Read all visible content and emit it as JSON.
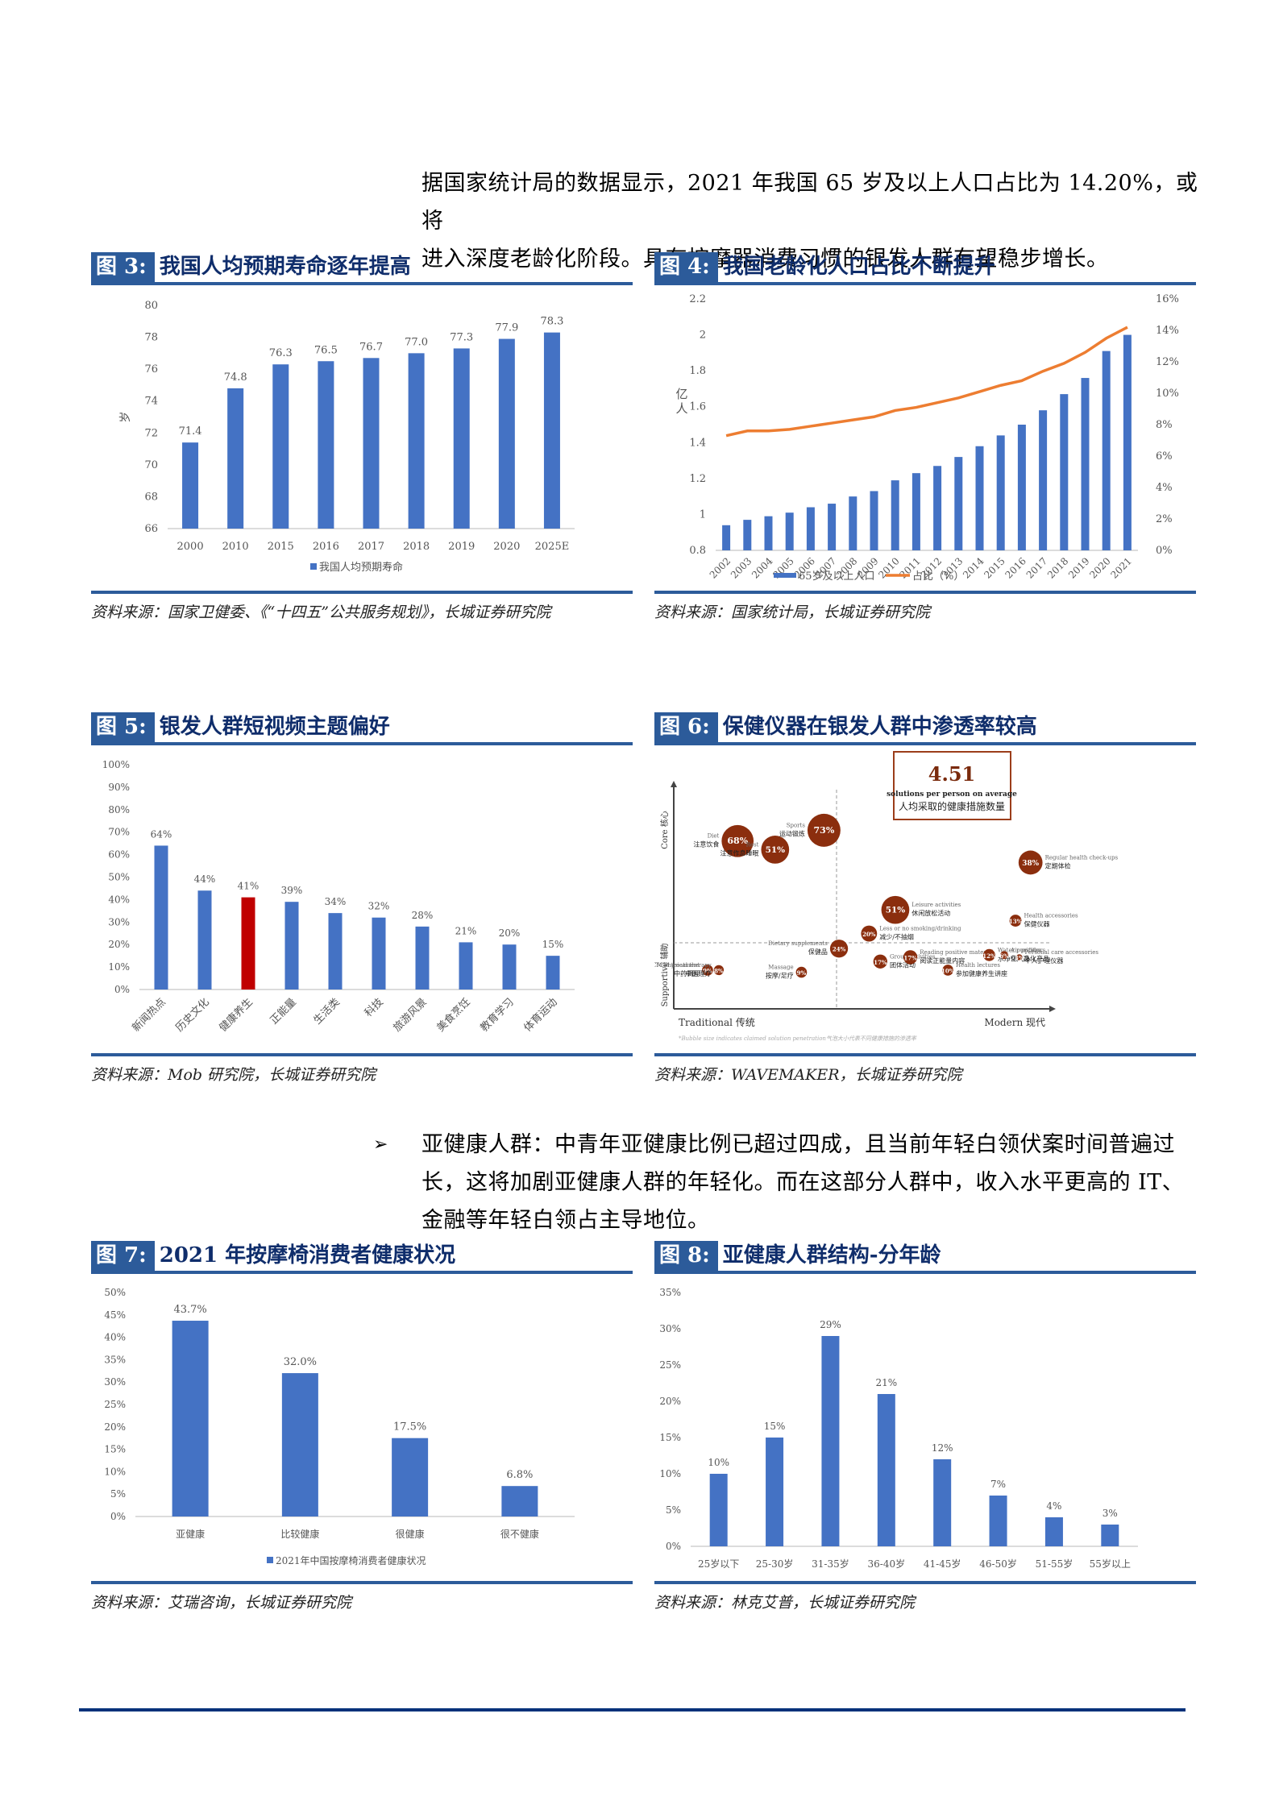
{
  "intro": {
    "line1": "据国家统计局的数据显示，2021 年我国 65 岁及以上人口占比为 14.20%，或将",
    "line2": "进入深度老龄化阶段。具有按摩器消费习惯的银发人群有望稳步增长。"
  },
  "bullet": {
    "marker": "➢",
    "line1": "亚健康人群：中青年亚健康比例已超过四成，且当前年轻白领伏案时间普遍过",
    "line2": "长，这将加剧亚健康人群的年轻化。而在这部分人群中，收入水平更高的 IT、",
    "line3": "金融等年轻白领占主导地位。"
  },
  "colors": {
    "header_blue": "#2c5b9a",
    "title_navy": "#0f2d6b",
    "bar_blue": "#4472c4",
    "highlight_red": "#c00000",
    "line_orange": "#ed7d31",
    "bubble_brown": "#8b2e0e",
    "footer_navy": "#03317a"
  },
  "figures": {
    "fig3": {
      "number": "图 3:",
      "title": "我国人均预期寿命逐年提高",
      "source": "资料来源：国家卫健委、《“十四五”公共服务规划》，长城证券研究院"
    },
    "fig4": {
      "number": "图 4:",
      "title": "我国老龄化人口占比不断提升",
      "source": "资料来源：国家统计局，长城证券研究院"
    },
    "fig5": {
      "number": "图 5:",
      "title": "银发人群短视频主题偏好",
      "source": "资料来源：Mob 研究院，长城证券研究院"
    },
    "fig6": {
      "number": "图 6:",
      "title": "保健仪器在银发人群中渗透率较高",
      "source": "资料来源：WAVEMAKER，长城证券研究院"
    },
    "fig7": {
      "number": "图 7:",
      "title": "2021 年按摩椅消费者健康状况",
      "source": "资料来源：艾瑞咨询，长城证券研究院"
    },
    "fig8": {
      "number": "图 8:",
      "title": "亚健康人群结构-分年龄",
      "source": "资料来源：林克艾普，长城证券研究院"
    }
  },
  "chart_data": [
    {
      "id": "fig3",
      "type": "bar",
      "title": "我国人均预期寿命逐年提高",
      "categories": [
        "2000",
        "2010",
        "2015",
        "2016",
        "2017",
        "2018",
        "2019",
        "2020",
        "2025E"
      ],
      "values": [
        71.4,
        74.8,
        76.3,
        76.5,
        76.7,
        77.0,
        77.3,
        77.9,
        78.3
      ],
      "labels": [
        "71.4",
        "74.8",
        "76.3",
        "76.5",
        "76.7",
        "77.0",
        "77.3",
        "77.9",
        "78.3"
      ],
      "ylabel": "岁",
      "ylim": [
        66,
        80
      ],
      "yticks": [
        "66",
        "68",
        "70",
        "72",
        "74",
        "76",
        "78",
        "80"
      ],
      "legend": [
        "我国人均预期寿命"
      ],
      "legend_position": "bottom",
      "grid": false
    },
    {
      "id": "fig4",
      "type": "bar+line",
      "title": "我国老龄化人口占比不断提升",
      "categories": [
        "2002",
        "2003",
        "2004",
        "2005",
        "2006",
        "2007",
        "2008",
        "2009",
        "2010",
        "2011",
        "2012",
        "2013",
        "2014",
        "2015",
        "2016",
        "2017",
        "2018",
        "2019",
        "2020",
        "2021"
      ],
      "series": [
        {
          "name": "65岁及以上人口",
          "type": "bar",
          "axis": "left",
          "values": [
            0.94,
            0.97,
            0.99,
            1.01,
            1.04,
            1.06,
            1.1,
            1.13,
            1.19,
            1.23,
            1.27,
            1.32,
            1.38,
            1.44,
            1.5,
            1.58,
            1.67,
            1.76,
            1.91,
            2.0
          ]
        },
        {
          "name": "占比（%）",
          "type": "line",
          "axis": "right",
          "values": [
            7.3,
            7.6,
            7.6,
            7.7,
            7.9,
            8.1,
            8.3,
            8.5,
            8.9,
            9.1,
            9.4,
            9.7,
            10.1,
            10.5,
            10.8,
            11.4,
            11.9,
            12.6,
            13.5,
            14.2
          ]
        }
      ],
      "ylabel": "亿人",
      "ylim": [
        0.8,
        2.2
      ],
      "yticks": [
        "0.8",
        "1",
        "1.2",
        "1.4",
        "1.6",
        "1.8",
        "2",
        "2.2"
      ],
      "y2lim": [
        0,
        16
      ],
      "y2ticks": [
        "0%",
        "2%",
        "4%",
        "6%",
        "8%",
        "10%",
        "12%",
        "14%",
        "16%"
      ],
      "legend": [
        "65岁及以上人口",
        "占比（%）"
      ],
      "legend_position": "bottom",
      "grid": false
    },
    {
      "id": "fig5",
      "type": "bar",
      "title": "银发人群短视频主题偏好",
      "categories": [
        "新闻热点",
        "历史文化",
        "健康养生",
        "正能量",
        "生活类",
        "科技",
        "旅游风景",
        "美食烹饪",
        "教育学习",
        "体育运动"
      ],
      "values": [
        64,
        44,
        41,
        39,
        34,
        32,
        28,
        21,
        20,
        15
      ],
      "labels": [
        "64%",
        "44%",
        "41%",
        "39%",
        "34%",
        "32%",
        "28%",
        "21%",
        "20%",
        "15%"
      ],
      "highlight": "健康养生",
      "ylim": [
        0,
        100
      ],
      "yticks": [
        "0%",
        "10%",
        "20%",
        "30%",
        "40%",
        "50%",
        "60%",
        "70%",
        "80%",
        "90%",
        "100%"
      ],
      "grid": false
    },
    {
      "id": "fig6",
      "type": "scatter",
      "title": "保健仪器在银发人群中渗透率较高",
      "callout": {
        "value": "4.51",
        "en": "solutions per person on average",
        "zh": "人均采取的健康措施数量"
      },
      "x_axis": {
        "left": "Traditional",
        "left_zh": "传统",
        "right": "Modern",
        "right_zh": "现代"
      },
      "y_axis": {
        "top": "Core",
        "top_zh": "核心",
        "bottom": "Supportive",
        "bottom_zh": "辅助"
      },
      "note": "*Bubble size indicates claimed solution penetration气泡大小代表不同健康措施的渗透率",
      "points": [
        {
          "en": "Diet",
          "zh": "注意饮食",
          "value": "68%",
          "x": 17,
          "y": 78,
          "r": 32
        },
        {
          "en": "Rest",
          "zh": "注意作息睡眠",
          "value": "51%",
          "x": 27,
          "y": 74,
          "r": 28
        },
        {
          "en": "Sports",
          "zh": "运动锻炼",
          "value": "73%",
          "x": 40,
          "y": 83,
          "r": 33
        },
        {
          "en": "Regular health check-ups",
          "zh": "定期体检",
          "value": "38%",
          "x": 95,
          "y": 68,
          "r": 24
        },
        {
          "en": "TCM treatment",
          "zh": "中药调理",
          "value": "9%",
          "x": 9,
          "y": 18,
          "r": 11
        },
        {
          "en": "TCM physical therapy",
          "zh": "中医理疗",
          "value": "8%",
          "x": 12,
          "y": 18,
          "r": 10
        },
        {
          "en": "Massage",
          "zh": "按摩/足疗",
          "value": "9%",
          "x": 34,
          "y": 17,
          "r": 11
        },
        {
          "en": "Dietary supplements",
          "zh": "保健品",
          "value": "24%",
          "x": 44,
          "y": 28,
          "r": 18
        },
        {
          "en": "Less or no smoking/drinking",
          "zh": "减少/不抽烟",
          "value": "20%",
          "x": 52,
          "y": 35,
          "r": 16
        },
        {
          "en": "Group activities",
          "zh": "团体活动",
          "value": "17%",
          "x": 55,
          "y": 22,
          "r": 14
        },
        {
          "en": "Leisure activities",
          "zh": "休闲放松活动",
          "value": "51%",
          "x": 59,
          "y": 46,
          "r": 28
        },
        {
          "en": "Reading positive material",
          "zh": "阅读正能量内容",
          "value": "17%",
          "x": 63,
          "y": 24,
          "r": 14
        },
        {
          "en": "Health lectures",
          "zh": "参加健康养生讲座",
          "value": "10%",
          "x": 73,
          "y": 18,
          "r": 11
        },
        {
          "en": "Water purifiers",
          "zh": "水净化产品",
          "value": "12%",
          "x": 84,
          "y": 25,
          "r": 12
        },
        {
          "en": "Air purifiers",
          "zh": "空气净化产品",
          "value": "6%",
          "x": 88,
          "y": 25,
          "r": 8
        },
        {
          "en": "Personal care accessories",
          "zh": "个人护理仪器",
          "value": "4%",
          "x": 92,
          "y": 24,
          "r": 6
        },
        {
          "en": "Health accessories",
          "zh": "保健仪器",
          "value": "13%",
          "x": 91,
          "y": 41,
          "r": 12
        }
      ]
    },
    {
      "id": "fig7",
      "type": "bar",
      "title": "2021 年按摩椅消费者健康状况",
      "categories": [
        "亚健康",
        "比较健康",
        "很健康",
        "很不健康"
      ],
      "values": [
        43.7,
        32.0,
        17.5,
        6.8
      ],
      "labels": [
        "43.7%",
        "32.0%",
        "17.5%",
        "6.8%"
      ],
      "ylim": [
        0,
        50
      ],
      "yticks": [
        "0%",
        "5%",
        "10%",
        "15%",
        "20%",
        "25%",
        "30%",
        "35%",
        "40%",
        "45%",
        "50%"
      ],
      "legend": [
        "2021年中国按摩椅消费者健康状况"
      ],
      "legend_position": "bottom",
      "grid": false
    },
    {
      "id": "fig8",
      "type": "bar",
      "title": "亚健康人群结构-分年龄",
      "categories": [
        "25岁以下",
        "25-30岁",
        "31-35岁",
        "36-40岁",
        "41-45岁",
        "46-50岁",
        "51-55岁",
        "55岁以上"
      ],
      "values": [
        10,
        15,
        29,
        21,
        12,
        7,
        4,
        3
      ],
      "labels": [
        "10%",
        "15%",
        "29%",
        "21%",
        "12%",
        "7%",
        "4%",
        "3%"
      ],
      "ylim": [
        0,
        35
      ],
      "yticks": [
        "0%",
        "5%",
        "10%",
        "15%",
        "20%",
        "25%",
        "30%",
        "35%"
      ],
      "grid": false
    }
  ]
}
